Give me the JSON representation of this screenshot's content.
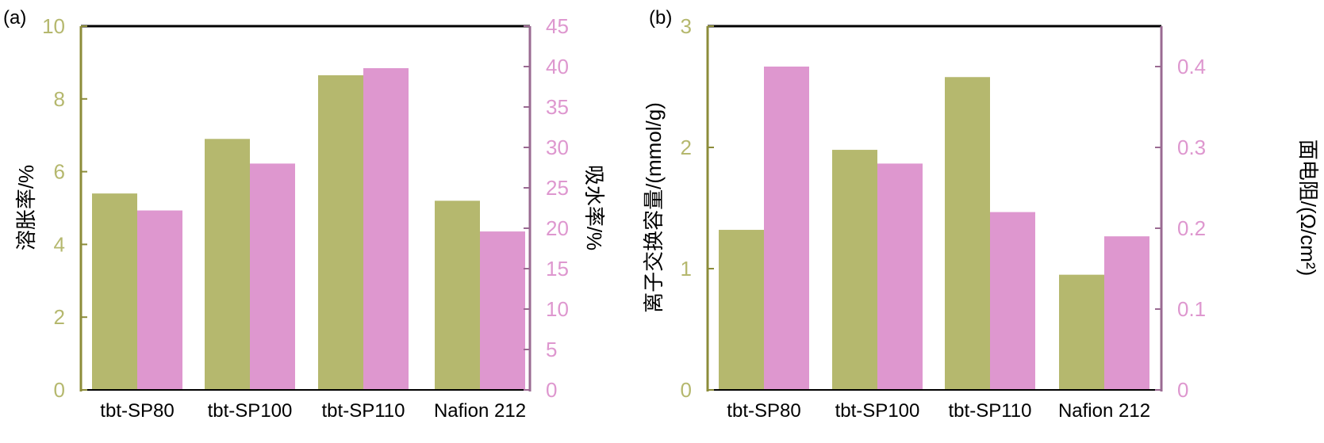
{
  "colors": {
    "olive": "#b5b86e",
    "pink": "#de97cf",
    "axis_left": "#8c8c3a",
    "axis_right": "#9a6a92",
    "tick_left": "#b5b86e",
    "tick_right": "#de97cf",
    "frame": "#000000"
  },
  "chart_data": [
    {
      "type": "bar",
      "panel_label": "(a)",
      "categories": [
        "tbt-SP80",
        "tbt-SP100",
        "tbt-SP110",
        "Nafion 212"
      ],
      "series": [
        {
          "axis": "left",
          "values": [
            5.4,
            6.9,
            8.65,
            5.2
          ]
        },
        {
          "axis": "right",
          "values": [
            22.2,
            28.0,
            39.8,
            19.6
          ]
        }
      ],
      "ylabel_left": "溶胀率/%",
      "ylabel_right": "吸水率/%",
      "ylim_left": [
        0,
        10
      ],
      "ylim_right": [
        0,
        45
      ],
      "yticks_left": [
        "0",
        "2",
        "4",
        "6",
        "8",
        "10"
      ],
      "yticks_right": [
        "0",
        "5",
        "10",
        "15",
        "20",
        "25",
        "30",
        "35",
        "40",
        "45"
      ],
      "grid": false,
      "legend": "none"
    },
    {
      "type": "bar",
      "panel_label": "(b)",
      "categories": [
        "tbt-SP80",
        "tbt-SP100",
        "tbt-SP110",
        "Nafion 212"
      ],
      "series": [
        {
          "axis": "left",
          "values": [
            1.32,
            1.98,
            2.58,
            0.95
          ]
        },
        {
          "axis": "right",
          "values": [
            0.4,
            0.28,
            0.22,
            0.19
          ]
        }
      ],
      "ylabel_left": "离子交换容量/(mmol/g)",
      "ylabel_right": "面电阻/(Ω/cm²)",
      "ylim_left": [
        0,
        3
      ],
      "ylim_right": [
        0,
        0.45
      ],
      "yticks_left": [
        "0",
        "1",
        "2",
        "3"
      ],
      "yticks_right": [
        "0",
        "0.1",
        "0.2",
        "0.3",
        "0.4"
      ],
      "grid": false,
      "legend": "none"
    }
  ]
}
